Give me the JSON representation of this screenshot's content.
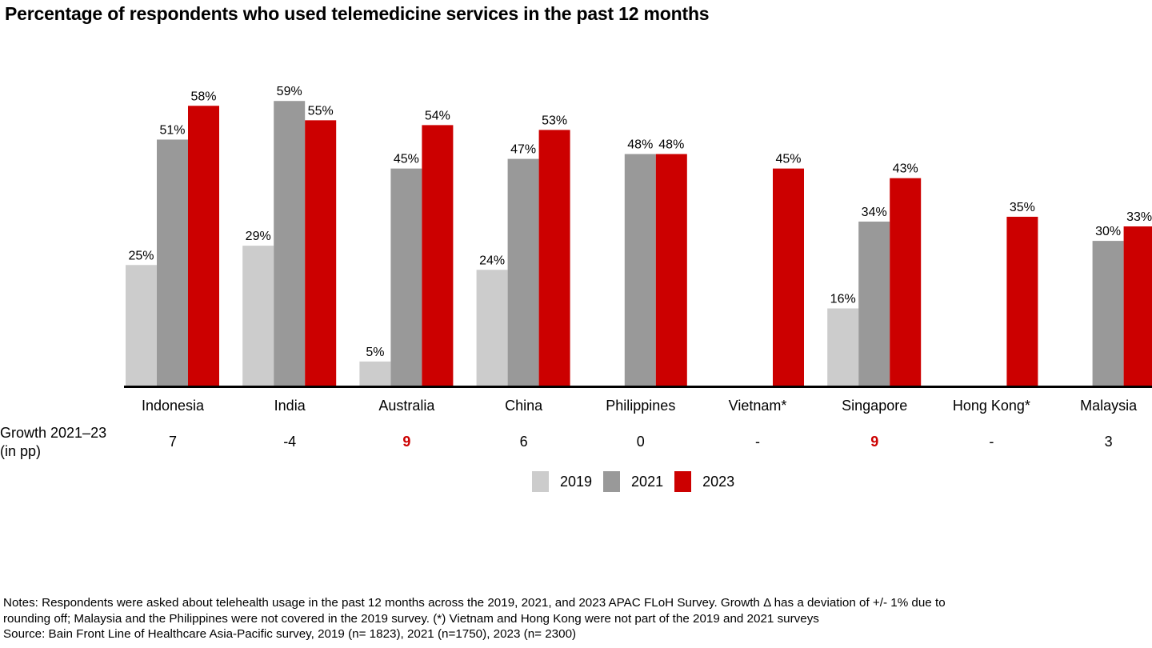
{
  "title": "Percentage of respondents who used telemedicine services in the past 12 months",
  "chart_data": {
    "type": "bar",
    "title": "Percentage of respondents who used telemedicine services in the past 12 months",
    "xlabel": "",
    "ylabel": "",
    "ylim": [
      0,
      60
    ],
    "grid": false,
    "categories": [
      "Indonesia",
      "India",
      "Australia",
      "China",
      "Philippines",
      "Vietnam*",
      "Singapore",
      "Hong Kong*",
      "Malaysia"
    ],
    "series": [
      {
        "name": "2019",
        "color": "#cccccc",
        "values": [
          25,
          29,
          5,
          24,
          null,
          null,
          16,
          null,
          null
        ],
        "labels": [
          "25%",
          "29%",
          "5%",
          "24%",
          null,
          null,
          "16%",
          null,
          null
        ]
      },
      {
        "name": "2021",
        "color": "#999999",
        "values": [
          51,
          59,
          45,
          47,
          48,
          null,
          34,
          null,
          30
        ],
        "labels": [
          "51%",
          "59%",
          "45%",
          "47%",
          "48%",
          null,
          "34%",
          null,
          "30%"
        ]
      },
      {
        "name": "2023",
        "color": "#cc0000",
        "values": [
          58,
          55,
          54,
          53,
          48,
          45,
          43,
          35,
          33
        ],
        "labels": [
          "58%",
          "55%",
          "54%",
          "53%",
          "48%",
          "45%",
          "43%",
          "35%",
          "33%"
        ]
      }
    ],
    "legend_position": "bottom-center",
    "growth": {
      "label_line1": "Growth 2021–23",
      "label_line2": "(in pp)",
      "values": [
        "7",
        "-4",
        "9",
        "6",
        "0",
        "-",
        "9",
        "-",
        "3"
      ],
      "highlight": [
        false,
        false,
        true,
        false,
        false,
        false,
        true,
        false,
        false
      ],
      "highlight_color": "#cc0000"
    }
  },
  "legend": [
    {
      "label": "2019",
      "color": "#cccccc"
    },
    {
      "label": "2021",
      "color": "#999999"
    },
    {
      "label": "2023",
      "color": "#cc0000"
    }
  ],
  "notes": {
    "line1": "Notes: Respondents were asked about telehealth usage in the past 12 months across the 2019, 2021, and 2023 APAC FLoH Survey. Growth Δ has a deviation of +/- 1% due to",
    "line2": "rounding off; Malaysia and the Philippines were not covered in the 2019 survey. (*) Vietnam and Hong Kong were not part of the 2019 and 2021 surveys",
    "source": "Source: Bain Front Line of Healthcare Asia-Pacific survey, 2019 (n= 1823), 2021 (n=1750), 2023 (n= 2300)"
  }
}
